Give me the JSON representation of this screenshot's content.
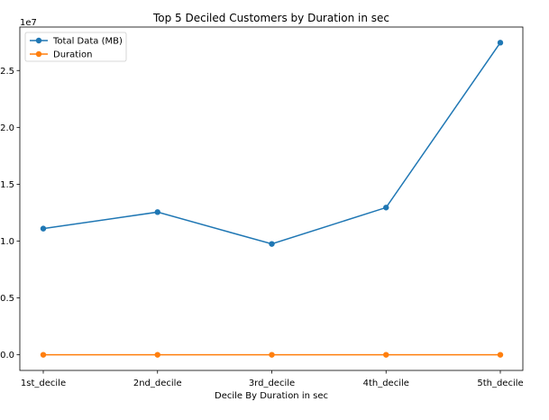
{
  "chart_data": {
    "type": "line",
    "title": "Top 5 Deciled Customers by Duration in sec",
    "xlabel": "Decile By Duration in sec",
    "ylabel": "",
    "categories": [
      "1st_decile",
      "2nd_decile",
      "3rd_decile",
      "4th_decile",
      "5th_decile"
    ],
    "series": [
      {
        "name": "Total Data (MB)",
        "color": "#1f77b4",
        "values": [
          11100000,
          12550000,
          9750000,
          12950000,
          27450000
        ]
      },
      {
        "name": "Duration",
        "color": "#ff7f0e",
        "values": [
          0,
          0,
          0,
          0,
          0
        ]
      }
    ],
    "ylim": [
      -1375000,
      28825000
    ],
    "yticks": [
      0,
      5000000,
      10000000,
      15000000,
      20000000,
      25000000
    ],
    "ytick_labels": [
      "0.0",
      "0.5",
      "1.0",
      "1.5",
      "2.0",
      "2.5"
    ],
    "y_offset_label": "1e7",
    "legend": "upper-left",
    "grid": false
  }
}
